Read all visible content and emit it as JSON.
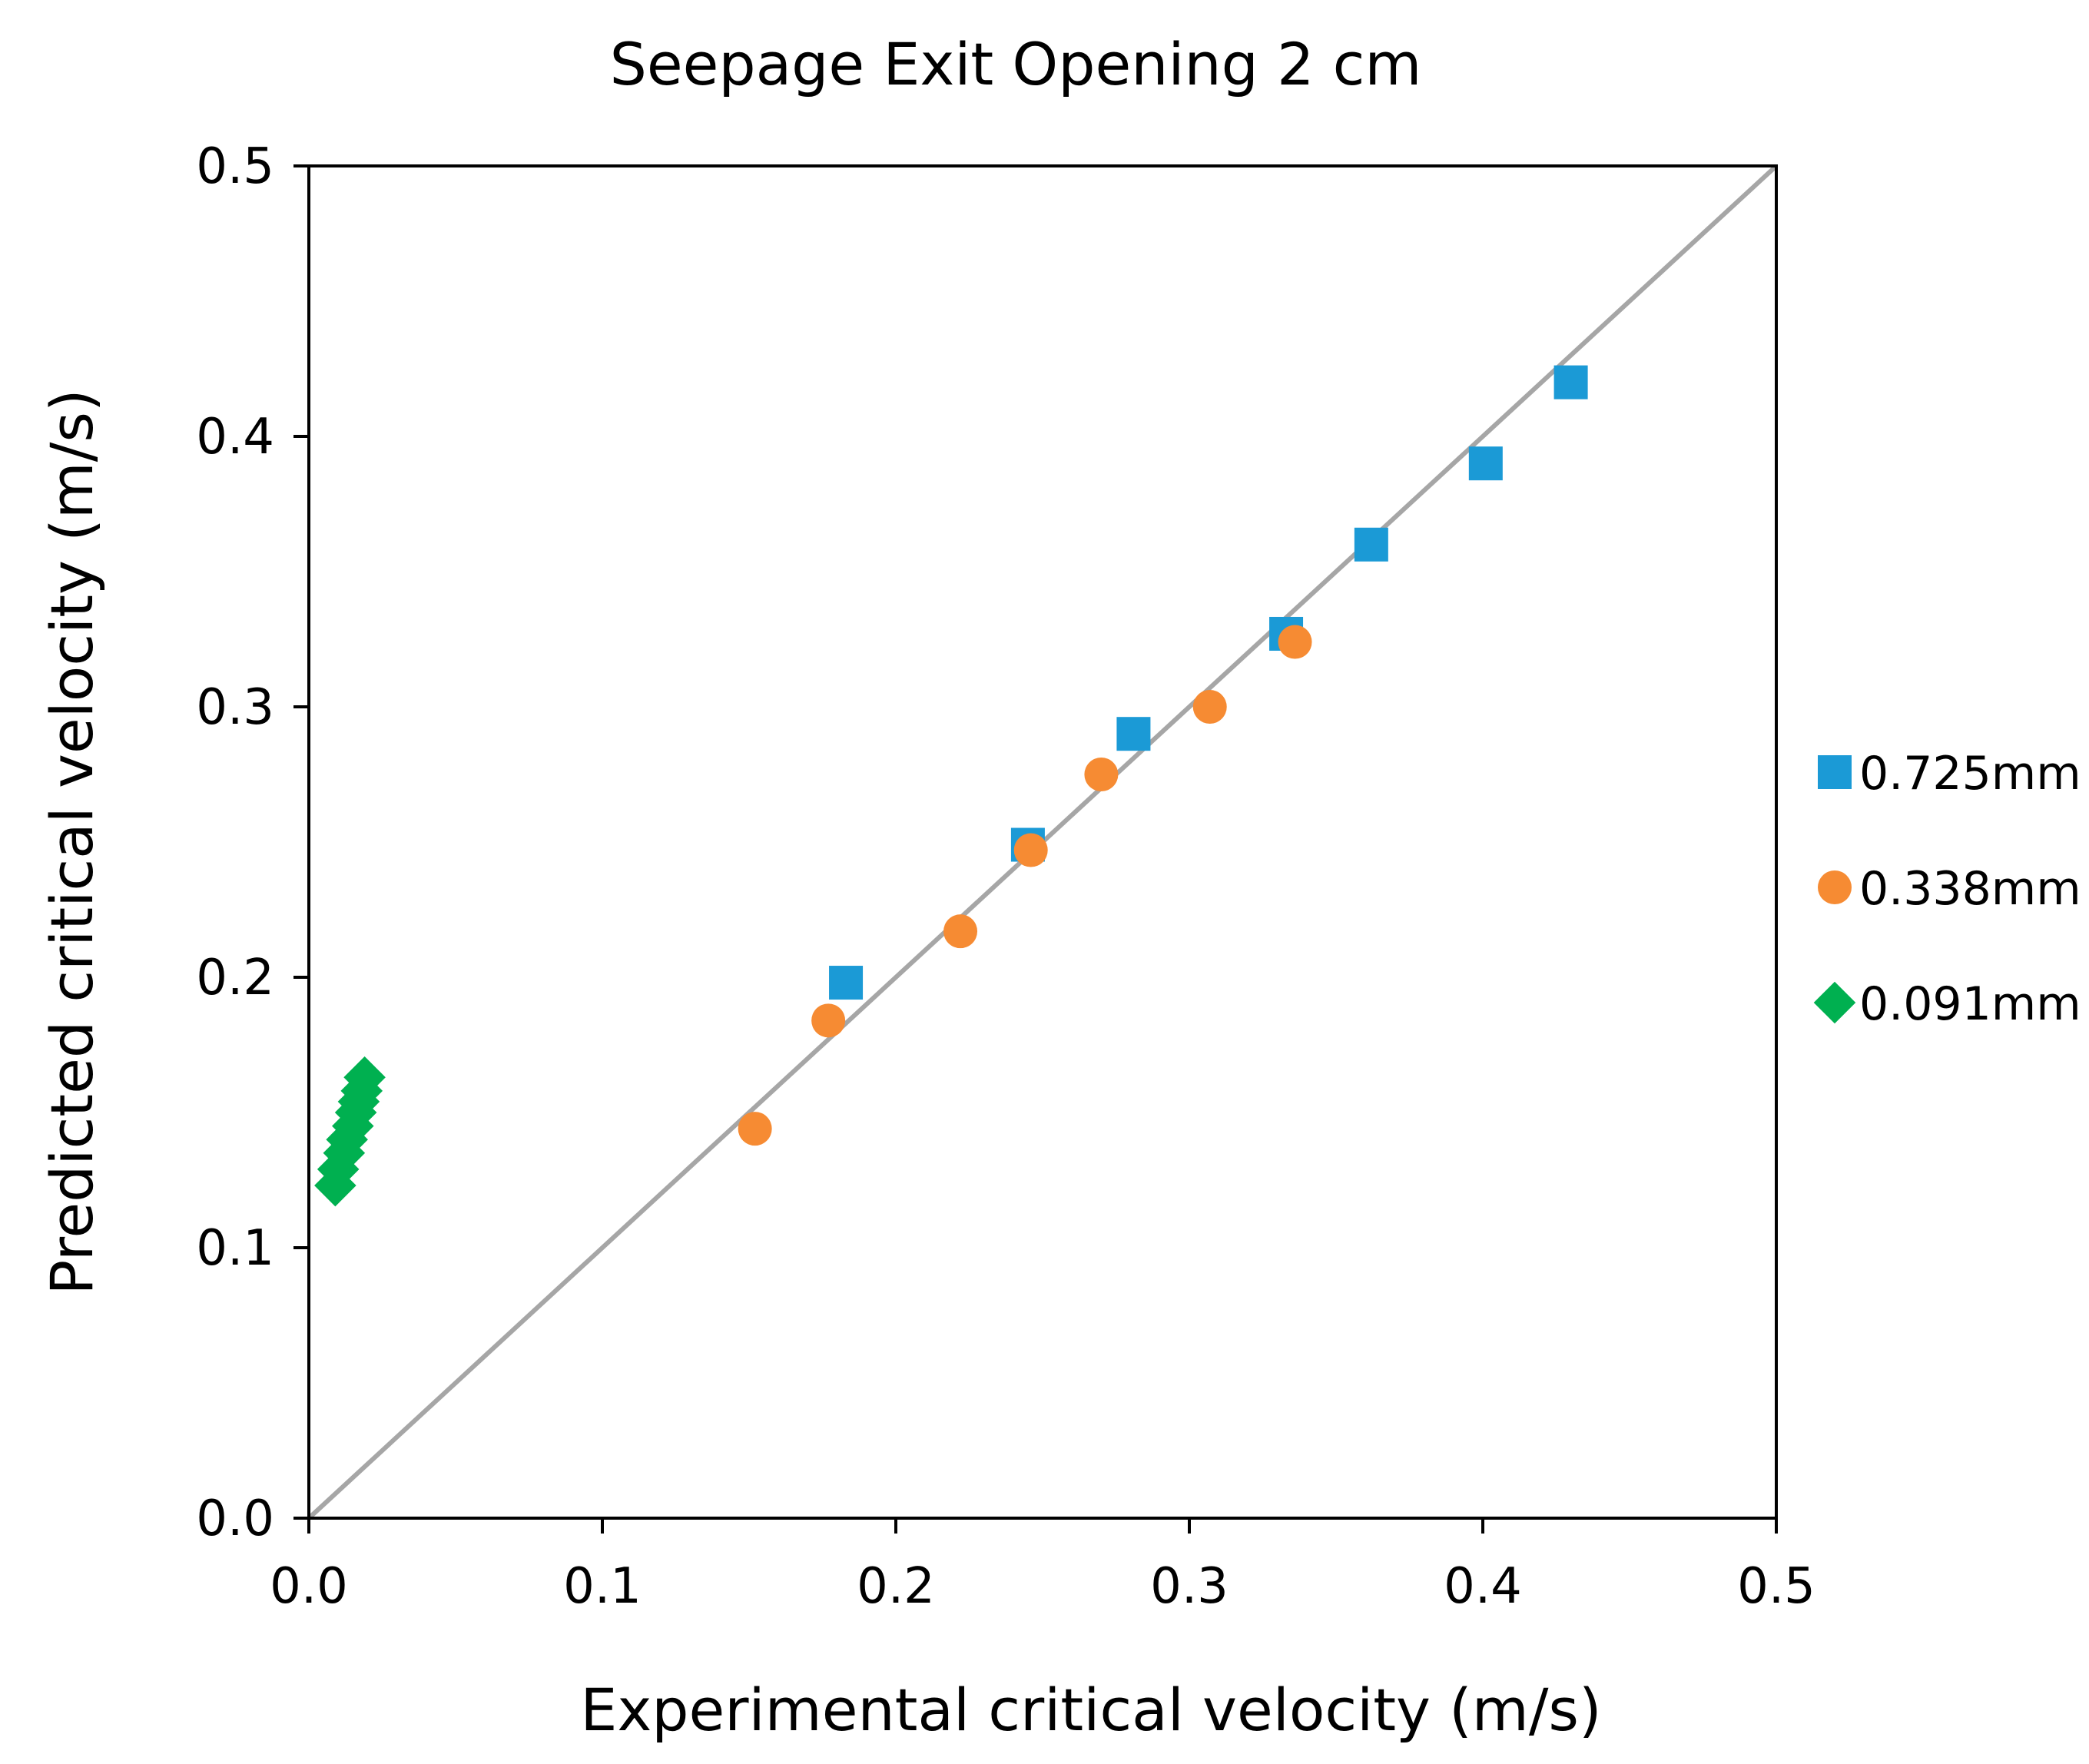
{
  "chart_data": {
    "type": "scatter",
    "title": "Seepage Exit Opening 2 cm",
    "xlabel": "Experimental critical velocity (m/s)",
    "ylabel": "Predicted critical velocity (m/s)",
    "xlim": [
      0,
      0.5
    ],
    "ylim": [
      0,
      0.5
    ],
    "xticks": [
      "0.0",
      "0.1",
      "0.2",
      "0.3",
      "0.4",
      "0.5"
    ],
    "yticks": [
      "0.0",
      "0.1",
      "0.2",
      "0.3",
      "0.4",
      "0.5"
    ],
    "grid": false,
    "legend_position": "right",
    "reference_line": {
      "x": [
        0,
        0.5
      ],
      "y": [
        0,
        0.5
      ],
      "color": "#A6A6A6"
    },
    "series": [
      {
        "name": "0.725mm",
        "marker": "square",
        "color": "#1B9AD6",
        "x": [
          0.183,
          0.245,
          0.281,
          0.333,
          0.362,
          0.401,
          0.43
        ],
        "y": [
          0.198,
          0.249,
          0.29,
          0.327,
          0.36,
          0.39,
          0.42
        ]
      },
      {
        "name": "0.338mm",
        "marker": "circle",
        "color": "#F68B33",
        "x": [
          0.152,
          0.177,
          0.222,
          0.246,
          0.27,
          0.307,
          0.336
        ],
        "y": [
          0.144,
          0.184,
          0.217,
          0.247,
          0.275,
          0.3,
          0.324
        ]
      },
      {
        "name": "0.091mm",
        "marker": "diamond",
        "color": "#00B050",
        "x": [
          0.009,
          0.01,
          0.012,
          0.013,
          0.015,
          0.016,
          0.017,
          0.018,
          0.019
        ],
        "y": [
          0.123,
          0.129,
          0.135,
          0.14,
          0.145,
          0.15,
          0.154,
          0.158,
          0.163
        ]
      }
    ]
  }
}
